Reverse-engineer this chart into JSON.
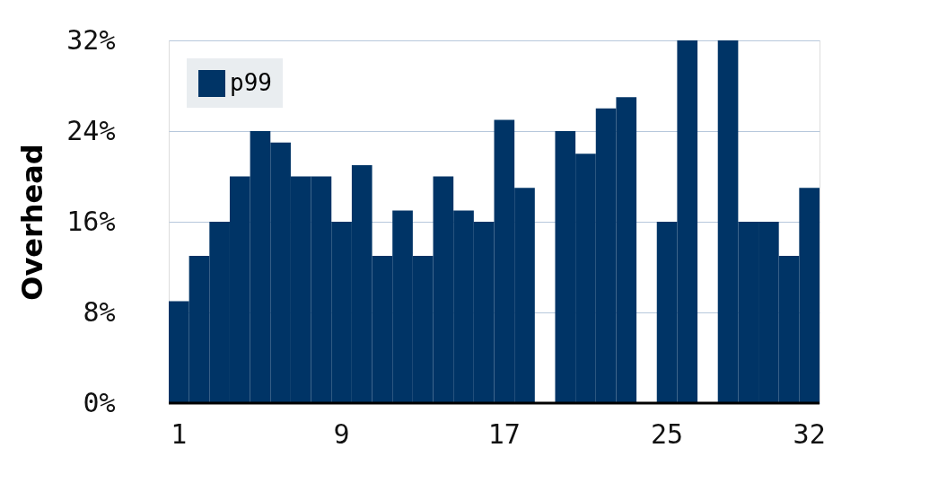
{
  "chart_data": {
    "type": "bar",
    "ylabel": "Overhead",
    "categories": [
      "1",
      null,
      null,
      null,
      null,
      null,
      null,
      null,
      "9",
      null,
      null,
      null,
      null,
      null,
      null,
      null,
      "17",
      null,
      null,
      null,
      null,
      null,
      null,
      null,
      "25",
      null,
      null,
      null,
      null,
      null,
      null,
      "32"
    ],
    "series": [
      {
        "name": "p99",
        "color": "#003466",
        "values": [
          9,
          13,
          16,
          20,
          24,
          23,
          20,
          20,
          16,
          21,
          13,
          17,
          13,
          20,
          17,
          16,
          25,
          19,
          null,
          24,
          22,
          26,
          27,
          null,
          16,
          32,
          null,
          32,
          16,
          16,
          13,
          19
        ]
      }
    ],
    "ylim": [
      0,
      32
    ],
    "yticks": [
      {
        "value": 0,
        "label": "0%"
      },
      {
        "value": 8,
        "label": "8%"
      },
      {
        "value": 16,
        "label": "16%"
      },
      {
        "value": 24,
        "label": "24%"
      },
      {
        "value": 32,
        "label": "32%"
      }
    ],
    "grid": "y",
    "legend": "top left"
  }
}
